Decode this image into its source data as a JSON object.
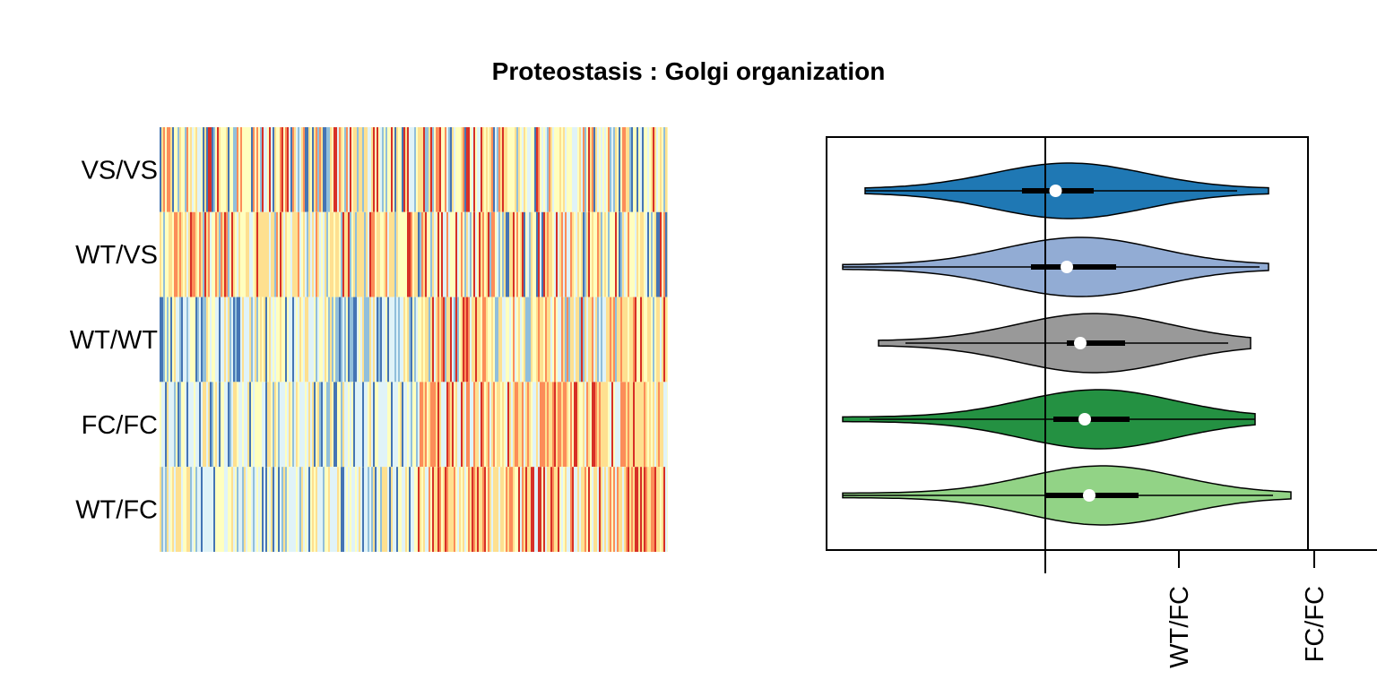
{
  "chart_data": [
    {
      "type": "heatmap",
      "panel": "left",
      "rows": [
        "VS/VS",
        "WT/VS",
        "WT/WT",
        "FC/FC",
        "WT/FC"
      ],
      "row_patterns": [
        {
          "label": "VS/VS",
          "left_tone": "mixed",
          "right_tone": "mixed"
        },
        {
          "label": "WT/VS",
          "left_tone": "warm",
          "right_tone": "mixed"
        },
        {
          "label": "WT/WT",
          "left_tone": "cool",
          "right_tone": "warm"
        },
        {
          "label": "FC/FC",
          "left_tone": "cool",
          "right_tone": "warm"
        },
        {
          "label": "WT/FC",
          "left_tone": "cool",
          "right_tone": "warm"
        }
      ],
      "colors": {
        "cool_dark": "#4575b4",
        "cool": "#91bfdb",
        "cool_light": "#e0f3f8",
        "neutral": "#ffffbf",
        "warm_light": "#fee090",
        "warm": "#fc8d59",
        "warm_dark": "#d73027"
      }
    },
    {
      "type": "violin",
      "panel": "right",
      "orientation": "horizontal",
      "title": "Proteostasis : Golgi organization",
      "tick_labels": [
        "WT/FC",
        "FC/FC"
      ],
      "series": [
        {
          "name": "VS/VS",
          "color": "#1f78b4",
          "min": 0.05,
          "q1": 0.4,
          "median": 0.475,
          "q3": 0.56,
          "max": 0.95,
          "whisker_hi": 0.88,
          "peak_width": 31
        },
        {
          "name": "WT/VS",
          "color": "#92acd4",
          "min": 0.0,
          "q1": 0.42,
          "median": 0.5,
          "q3": 0.61,
          "max": 0.95,
          "whisker_hi": 0.93,
          "peak_width": 33
        },
        {
          "name": "WT/WT",
          "color": "#999999",
          "min": 0.08,
          "q1": 0.5,
          "median": 0.53,
          "q3": 0.63,
          "max": 0.91,
          "whisker_lo": 0.14,
          "whisker_hi": 0.86,
          "peak_width": 33
        },
        {
          "name": "FC/FC",
          "color": "#249142",
          "min": 0.0,
          "q1": 0.47,
          "median": 0.54,
          "q3": 0.64,
          "max": 0.92,
          "whisker_lo": 0.06,
          "peak_width": 33
        },
        {
          "name": "WT/FC",
          "color": "#92d386",
          "min": 0.0,
          "q1": 0.45,
          "median": 0.55,
          "q3": 0.66,
          "max": 1.0,
          "whisker_hi": 0.96,
          "peak_width": 33
        }
      ],
      "reference_line": 0.48
    }
  ],
  "heatmap_title": "Proteostasis : Golgi organization"
}
